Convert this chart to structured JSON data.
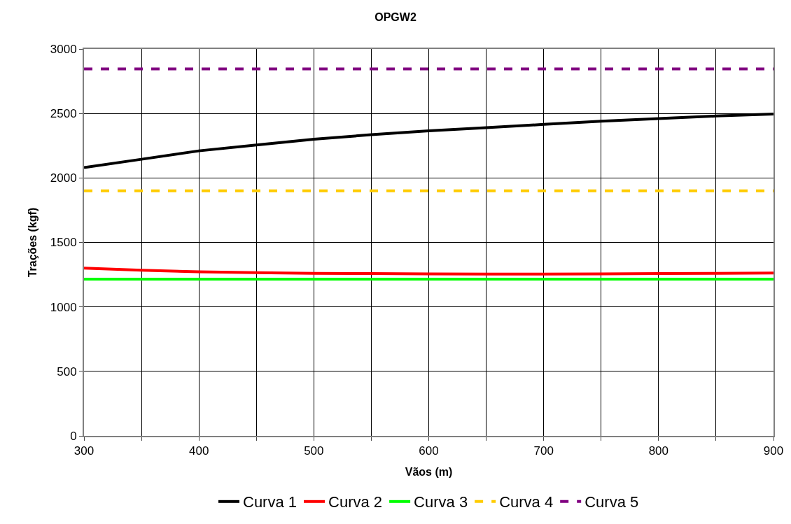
{
  "chart_data": {
    "type": "line",
    "title": "OPGW2",
    "xlabel": "Vãos (m)",
    "ylabel": "Trações (kgf)",
    "x": [
      300,
      350,
      400,
      450,
      500,
      550,
      600,
      650,
      700,
      750,
      800,
      850,
      900
    ],
    "series": [
      {
        "name": "Curva 1",
        "color": "#000000",
        "line_style": "solid",
        "values": [
          2080,
          2145,
          2210,
          2255,
          2300,
          2335,
          2365,
          2390,
          2415,
          2440,
          2460,
          2480,
          2495
        ]
      },
      {
        "name": "Curva 2",
        "color": "#ff0000",
        "line_style": "solid",
        "values": [
          1300,
          1285,
          1272,
          1265,
          1260,
          1258,
          1256,
          1255,
          1255,
          1256,
          1258,
          1260,
          1262
        ]
      },
      {
        "name": "Curva 3",
        "color": "#00ff00",
        "line_style": "solid",
        "values": [
          1215,
          1215,
          1215,
          1215,
          1215,
          1215,
          1215,
          1215,
          1215,
          1215,
          1215,
          1215,
          1215
        ]
      },
      {
        "name": "Curva 4",
        "color": "#ffcc00",
        "line_style": "dashed",
        "values": [
          1900,
          1900,
          1900,
          1900,
          1900,
          1900,
          1900,
          1900,
          1900,
          1900,
          1900,
          1900,
          1900
        ]
      },
      {
        "name": "Curva 5",
        "color": "#800080",
        "line_style": "dashed",
        "values": [
          2845,
          2845,
          2845,
          2845,
          2845,
          2845,
          2845,
          2845,
          2845,
          2845,
          2845,
          2845,
          2845
        ]
      }
    ],
    "xlim": [
      300,
      900
    ],
    "xticks": [
      300,
      {
        "value": 350,
        "label": null
      },
      400,
      {
        "value": 450,
        "label": null
      },
      500,
      {
        "value": 550,
        "label": null
      },
      600,
      {
        "value": 650,
        "label": null
      },
      700,
      {
        "value": 750,
        "label": null
      },
      800,
      {
        "value": 850,
        "label": null
      },
      900
    ],
    "ylim": [
      0,
      3000
    ],
    "yticks": [
      0,
      500,
      1000,
      1500,
      2000,
      2500,
      3000
    ],
    "grid": true,
    "legend": "bottom",
    "marker": "none"
  }
}
